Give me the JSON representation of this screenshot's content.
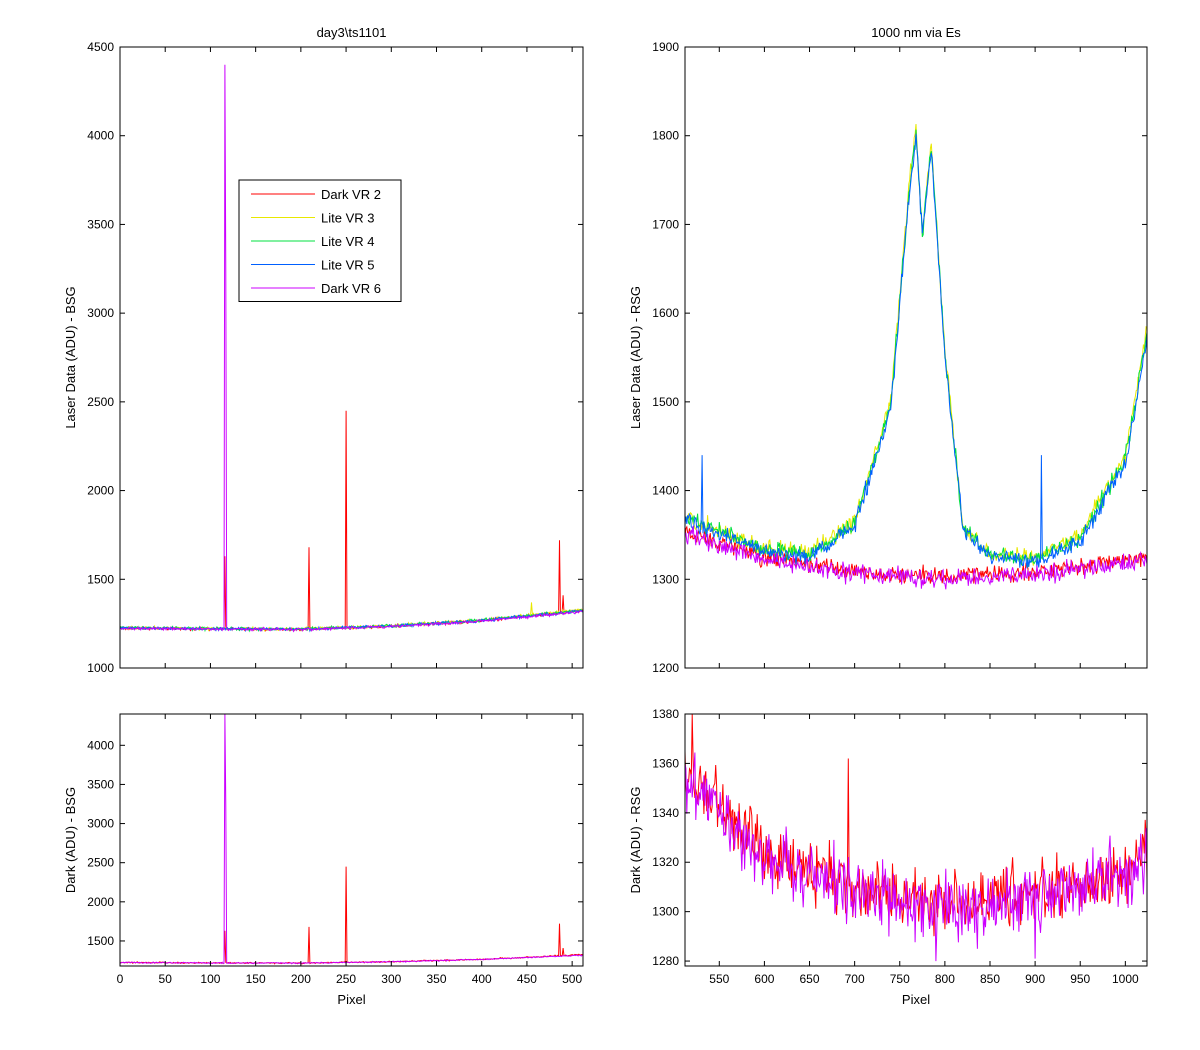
{
  "chart_data": [
    {
      "id": "top_left",
      "type": "line",
      "title": "day3\\ts1101",
      "xlabel": "",
      "ylabel": "Laser Data (ADU) - BSG",
      "xlim": [
        0,
        512
      ],
      "ylim": [
        1000,
        4500
      ],
      "xticks": [
        0,
        50,
        100,
        150,
        200,
        250,
        300,
        350,
        400,
        450,
        500
      ],
      "yticks": [
        1000,
        1500,
        2000,
        2500,
        3000,
        3500,
        4000,
        4500
      ],
      "show_xtick_labels": false,
      "legend": "upper-center",
      "series": [
        {
          "name": "Dark VR 2",
          "color": "#ff0000",
          "baseline": [
            [
              0,
              1225
            ],
            [
              100,
              1220
            ],
            [
              200,
              1218
            ],
            [
              300,
              1235
            ],
            [
              400,
              1265
            ],
            [
              512,
              1325
            ]
          ],
          "noise": 8,
          "spikes": [
            [
              116,
              1630
            ],
            [
              209,
              1680
            ],
            [
              250,
              2450
            ],
            [
              486,
              1720
            ],
            [
              490,
              1410
            ]
          ]
        },
        {
          "name": "Lite VR 3",
          "color": "#e8e800",
          "baseline": [
            [
              0,
              1228
            ],
            [
              100,
              1222
            ],
            [
              200,
              1220
            ],
            [
              300,
              1238
            ],
            [
              400,
              1270
            ],
            [
              512,
              1330
            ]
          ],
          "noise": 9,
          "spikes": [
            [
              455,
              1370
            ]
          ]
        },
        {
          "name": "Lite VR 4",
          "color": "#00e040",
          "baseline": [
            [
              0,
              1228
            ],
            [
              100,
              1222
            ],
            [
              200,
              1220
            ],
            [
              300,
              1238
            ],
            [
              400,
              1270
            ],
            [
              512,
              1325
            ]
          ],
          "noise": 9,
          "spikes": []
        },
        {
          "name": "Lite VR 5",
          "color": "#0060ff",
          "baseline": [
            [
              0,
              1226
            ],
            [
              100,
              1221
            ],
            [
              200,
              1219
            ],
            [
              300,
              1236
            ],
            [
              400,
              1268
            ],
            [
              512,
              1322
            ]
          ],
          "noise": 9,
          "spikes": []
        },
        {
          "name": "Dark VR 6",
          "color": "#cc00ff",
          "baseline": [
            [
              0,
              1224
            ],
            [
              100,
              1219
            ],
            [
              200,
              1217
            ],
            [
              300,
              1234
            ],
            [
              400,
              1264
            ],
            [
              512,
              1318
            ]
          ],
          "noise": 8,
          "spikes": [
            [
              116,
              4400
            ],
            [
              117,
              3220
            ]
          ]
        }
      ]
    },
    {
      "id": "top_right",
      "type": "line",
      "title": "1000 nm via Es",
      "xlabel": "",
      "ylabel": "Laser Data (ADU) - RSG",
      "xlim": [
        512,
        1024
      ],
      "ylim": [
        1200,
        1900
      ],
      "xticks": [
        550,
        600,
        650,
        700,
        750,
        800,
        850,
        900,
        950,
        1000
      ],
      "yticks": [
        1200,
        1300,
        1400,
        1500,
        1600,
        1700,
        1800,
        1900
      ],
      "show_xtick_labels": false,
      "series": [
        {
          "name": "Dark VR 2",
          "color": "#ff0000",
          "baseline": [
            [
              512,
              1355
            ],
            [
              600,
              1325
            ],
            [
              700,
              1308
            ],
            [
              800,
              1302
            ],
            [
              900,
              1308
            ],
            [
              1024,
              1325
            ]
          ],
          "noise": 10,
          "spikes": []
        },
        {
          "name": "Lite VR 3",
          "color": "#e8e800",
          "baseline": [
            [
              512,
              1370
            ],
            [
              600,
              1335
            ],
            [
              650,
              1330
            ],
            [
              700,
              1365
            ],
            [
              740,
              1500
            ],
            [
              760,
              1740
            ],
            [
              768,
              1810
            ],
            [
              775,
              1690
            ],
            [
              785,
              1790
            ],
            [
              800,
              1560
            ],
            [
              820,
              1360
            ],
            [
              850,
              1330
            ],
            [
              900,
              1325
            ],
            [
              950,
              1350
            ],
            [
              1000,
              1440
            ],
            [
              1024,
              1585
            ]
          ],
          "noise": 9,
          "spikes": []
        },
        {
          "name": "Lite VR 4",
          "color": "#00e040",
          "baseline": [
            [
              512,
              1370
            ],
            [
              600,
              1333
            ],
            [
              650,
              1328
            ],
            [
              700,
              1362
            ],
            [
              740,
              1495
            ],
            [
              760,
              1735
            ],
            [
              768,
              1805
            ],
            [
              775,
              1690
            ],
            [
              785,
              1788
            ],
            [
              800,
              1555
            ],
            [
              820,
              1358
            ],
            [
              850,
              1328
            ],
            [
              900,
              1322
            ],
            [
              950,
              1345
            ],
            [
              1000,
              1435
            ],
            [
              1024,
              1578
            ]
          ],
          "noise": 9,
          "spikes": []
        },
        {
          "name": "Lite VR 5",
          "color": "#0060ff",
          "baseline": [
            [
              512,
              1368
            ],
            [
              600,
              1331
            ],
            [
              650,
              1326
            ],
            [
              700,
              1360
            ],
            [
              740,
              1490
            ],
            [
              760,
              1730
            ],
            [
              768,
              1800
            ],
            [
              775,
              1690
            ],
            [
              785,
              1785
            ],
            [
              800,
              1550
            ],
            [
              820,
              1356
            ],
            [
              850,
              1326
            ],
            [
              900,
              1320
            ],
            [
              950,
              1342
            ],
            [
              1000,
              1430
            ],
            [
              1024,
              1570
            ]
          ],
          "noise": 9,
          "spikes": [
            [
              531,
              1440
            ],
            [
              907,
              1440
            ]
          ]
        },
        {
          "name": "Dark VR 6",
          "color": "#cc00ff",
          "baseline": [
            [
              512,
              1352
            ],
            [
              600,
              1322
            ],
            [
              700,
              1306
            ],
            [
              800,
              1300
            ],
            [
              900,
              1306
            ],
            [
              1024,
              1322
            ]
          ],
          "noise": 10,
          "spikes": []
        }
      ]
    },
    {
      "id": "bottom_left",
      "type": "line",
      "title": "",
      "xlabel": "Pixel",
      "ylabel": "Dark (ADU) - BSG",
      "xlim": [
        0,
        512
      ],
      "ylim": [
        1180,
        4400
      ],
      "xticks": [
        0,
        50,
        100,
        150,
        200,
        250,
        300,
        350,
        400,
        450,
        500
      ],
      "yticks": [
        1500,
        2000,
        2500,
        3000,
        3500,
        4000
      ],
      "show_xtick_labels": true,
      "series": [
        {
          "name": "Dark VR 2",
          "color": "#ff0000",
          "baseline": [
            [
              0,
              1225
            ],
            [
              100,
              1220
            ],
            [
              200,
              1218
            ],
            [
              300,
              1235
            ],
            [
              400,
              1265
            ],
            [
              512,
              1325
            ]
          ],
          "noise": 8,
          "spikes": [
            [
              116,
              1630
            ],
            [
              209,
              1680
            ],
            [
              250,
              2450
            ],
            [
              486,
              1720
            ],
            [
              490,
              1410
            ]
          ]
        },
        {
          "name": "Dark VR 6",
          "color": "#cc00ff",
          "baseline": [
            [
              0,
              1224
            ],
            [
              100,
              1219
            ],
            [
              200,
              1217
            ],
            [
              300,
              1234
            ],
            [
              400,
              1264
            ],
            [
              512,
              1318
            ]
          ],
          "noise": 8,
          "spikes": [
            [
              116,
              4400
            ],
            [
              117,
              3220
            ]
          ]
        }
      ]
    },
    {
      "id": "bottom_right",
      "type": "line",
      "title": "",
      "xlabel": "Pixel",
      "ylabel": "Dark (ADU) - RSG",
      "xlim": [
        512,
        1024
      ],
      "ylim": [
        1278,
        1380
      ],
      "xticks": [
        550,
        600,
        650,
        700,
        750,
        800,
        850,
        900,
        950,
        1000
      ],
      "yticks": [
        1280,
        1300,
        1320,
        1340,
        1360,
        1380
      ],
      "show_xtick_labels": true,
      "series": [
        {
          "name": "Dark VR 2",
          "color": "#ff0000",
          "baseline": [
            [
              512,
              1356
            ],
            [
              560,
              1338
            ],
            [
              600,
              1325
            ],
            [
              700,
              1310
            ],
            [
              800,
              1303
            ],
            [
              900,
              1307
            ],
            [
              1000,
              1317
            ],
            [
              1024,
              1323
            ]
          ],
          "noise": 12,
          "spikes": [
            [
              520,
              1380
            ],
            [
              693,
              1362
            ]
          ]
        },
        {
          "name": "Dark VR 6",
          "color": "#cc00ff",
          "baseline": [
            [
              512,
              1354
            ],
            [
              560,
              1336
            ],
            [
              600,
              1323
            ],
            [
              700,
              1308
            ],
            [
              800,
              1301
            ],
            [
              900,
              1305
            ],
            [
              1000,
              1315
            ],
            [
              1024,
              1320
            ]
          ],
          "noise": 13,
          "spikes": [
            [
              790,
              1280
            ],
            [
              900,
              1281
            ]
          ]
        }
      ]
    }
  ]
}
